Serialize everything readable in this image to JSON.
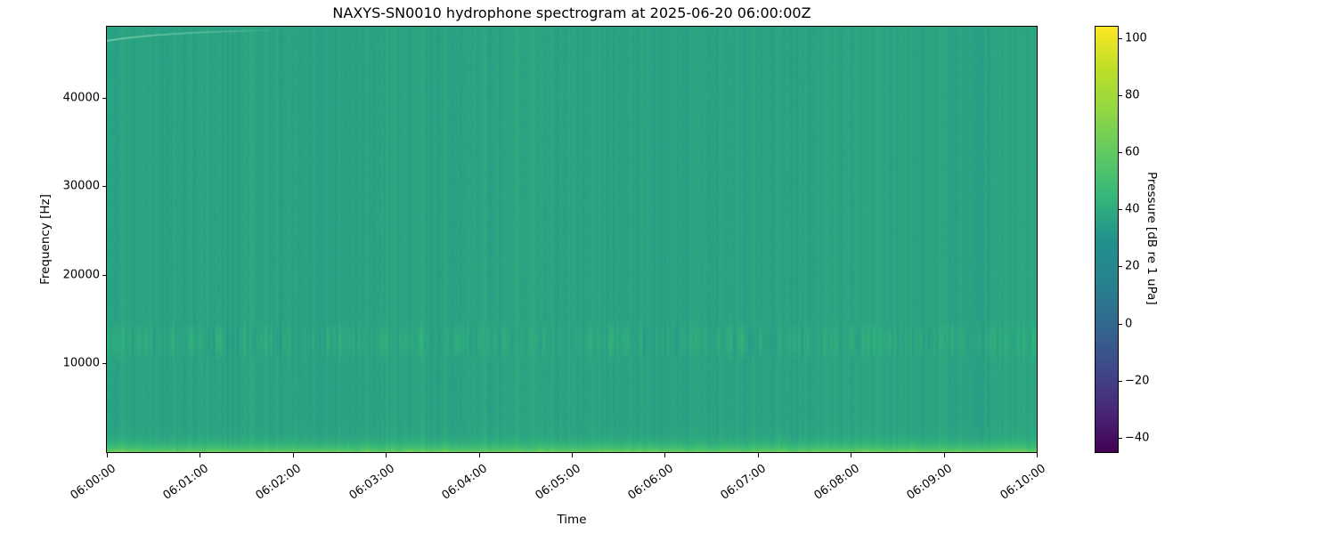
{
  "figure": {
    "background": "#ffffff",
    "text_color": "#000000"
  },
  "chart_data": {
    "type": "heatmap",
    "title": "NAXYS-SN0010 hydrophone spectrogram at 2025-06-20 06:00:00Z",
    "xlabel": "Time",
    "ylabel": "Frequency [Hz]",
    "x_tick_labels": [
      "06:00:00",
      "06:01:00",
      "06:02:00",
      "06:03:00",
      "06:04:00",
      "06:05:00",
      "06:06:00",
      "06:07:00",
      "06:08:00",
      "06:09:00",
      "06:10:00"
    ],
    "x_range_seconds": [
      0,
      600
    ],
    "y_tick_values": [
      10000,
      20000,
      30000,
      40000
    ],
    "y_range_hz": [
      0,
      48000
    ],
    "grid": false,
    "legend": "none",
    "colorbar": {
      "label": "Pressure [dB re 1 uPa]",
      "tick_values": [
        100,
        80,
        60,
        40,
        20,
        0,
        -20,
        -40
      ],
      "value_range": [
        -45,
        104
      ],
      "colormap": "viridis",
      "colormap_stops": [
        [
          0.0,
          "#440154"
        ],
        [
          0.1,
          "#482878"
        ],
        [
          0.2,
          "#3e4a89"
        ],
        [
          0.3,
          "#31688e"
        ],
        [
          0.4,
          "#26828e"
        ],
        [
          0.5,
          "#21918c"
        ],
        [
          0.6,
          "#35b779"
        ],
        [
          0.7,
          "#5ec962"
        ],
        [
          0.8,
          "#90d743"
        ],
        [
          0.9,
          "#bddf26"
        ],
        [
          1.0,
          "#fde725"
        ]
      ]
    },
    "field": {
      "description": "Broadband ambient noise field, mostly uniform around the base level with fine vertical time striations",
      "base_db": 37,
      "pixel_noise_db": 0.7,
      "column_noise_db": 1.1,
      "mid_band": {
        "name": "striated-mid-band",
        "freq_hz": [
          10300,
          14800
        ],
        "boost_db": 1.4,
        "column_noise_db": 2.2
      },
      "low_band": {
        "name": "low-frequency-energy",
        "surface_boost_db": 27,
        "decay_hz": 640,
        "column_mod": 0.18
      },
      "sweep": {
        "name": "faint-upward-sweep",
        "t_start_s": 0,
        "t_end_s": 95,
        "f_start_hz": 46400,
        "f_end_hz": 47600,
        "peak_alpha": 0.55
      }
    }
  }
}
